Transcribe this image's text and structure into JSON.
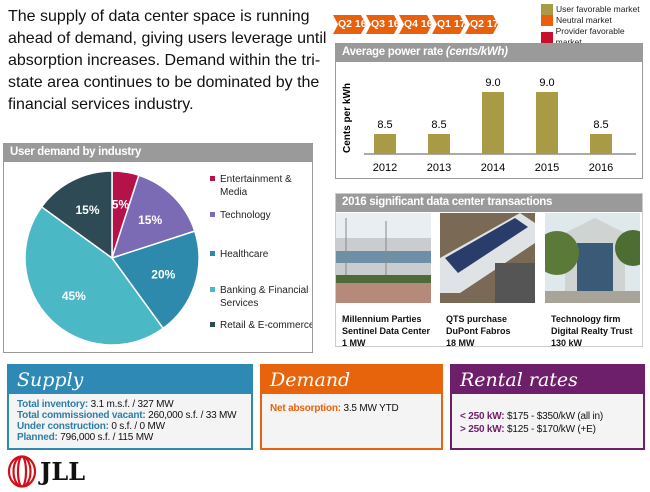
{
  "intro": "The supply of data center space is running ahead of demand, giving users leverage until absorption increases. Demand within the tri-state area continues to be dominated by the financial services industry.",
  "timeline": [
    "Q2 16",
    "Q3 16",
    "Q4 16",
    "Q1 17",
    "Q2 17"
  ],
  "legend": [
    {
      "label": "User favorable market",
      "color": "#a99a45"
    },
    {
      "label": "Neutral market",
      "color": "#e8600c"
    },
    {
      "label": "Provider favorable market",
      "color": "#c8102e"
    }
  ],
  "chart_data": [
    {
      "type": "bar",
      "title": "Average power rate",
      "title_unit": "(cents/kWh)",
      "ylabel": "Cents per kWh",
      "categories": [
        "2012",
        "2013",
        "2014",
        "2015",
        "2016"
      ],
      "values": [
        8.5,
        8.5,
        9.0,
        9.0,
        8.5
      ],
      "labels": [
        "8.5",
        "8.5",
        "9.0",
        "9.0",
        "8.5"
      ],
      "color": "#a99a45"
    },
    {
      "type": "pie",
      "title": "User demand by industry",
      "slices": [
        {
          "label": "Entertainment & Media",
          "value": 5,
          "text": "5%",
          "color": "#b5124a"
        },
        {
          "label": "Technology",
          "value": 15,
          "text": "15%",
          "color": "#7b6bb5"
        },
        {
          "label": "Healthcare",
          "value": 20,
          "text": "20%",
          "color": "#2e8aac"
        },
        {
          "label": "Banking & Financial Services",
          "value": 45,
          "text": "45%",
          "color": "#4ab9c5"
        },
        {
          "label": "Retail & E-commerce",
          "value": 15,
          "text": "15%",
          "color": "#2e4a55"
        }
      ]
    }
  ],
  "transactions": {
    "title": "2016  significant data center transactions",
    "items": [
      {
        "l1": "Millennium Parties",
        "l2": "Sentinel Data Center",
        "l3": "1 MW"
      },
      {
        "l1": "QTS purchase",
        "l2": "DuPont Fabros",
        "l3": "18 MW"
      },
      {
        "l1": "Technology firm",
        "l2": "Digital Realty Trust",
        "l3": "130 kW"
      }
    ]
  },
  "supply": {
    "title": "Supply",
    "rows": [
      {
        "k": "Total inventory:",
        "v": " 3.1 m.s.f. / 327 MW"
      },
      {
        "k": "Total commissioned vacant:",
        "v": " 260,000 s.f. / 33 MW"
      },
      {
        "k": "Under construction:",
        "v": " 0 s.f. / 0 MW"
      },
      {
        "k": "Planned:",
        "v": " 796,000 s.f. / 115 MW"
      }
    ]
  },
  "demand": {
    "title": "Demand",
    "k": "Net absorption:",
    "v": " 3.5 MW YTD"
  },
  "rental": {
    "title": "Rental rates",
    "rows": [
      {
        "k": "< 250 kW:",
        "v": " $175 - $350/kW (all in)"
      },
      {
        "k": "> 250 kW:",
        "v": " $125 - $170/kW (+E)"
      }
    ]
  },
  "logo": "JLL"
}
